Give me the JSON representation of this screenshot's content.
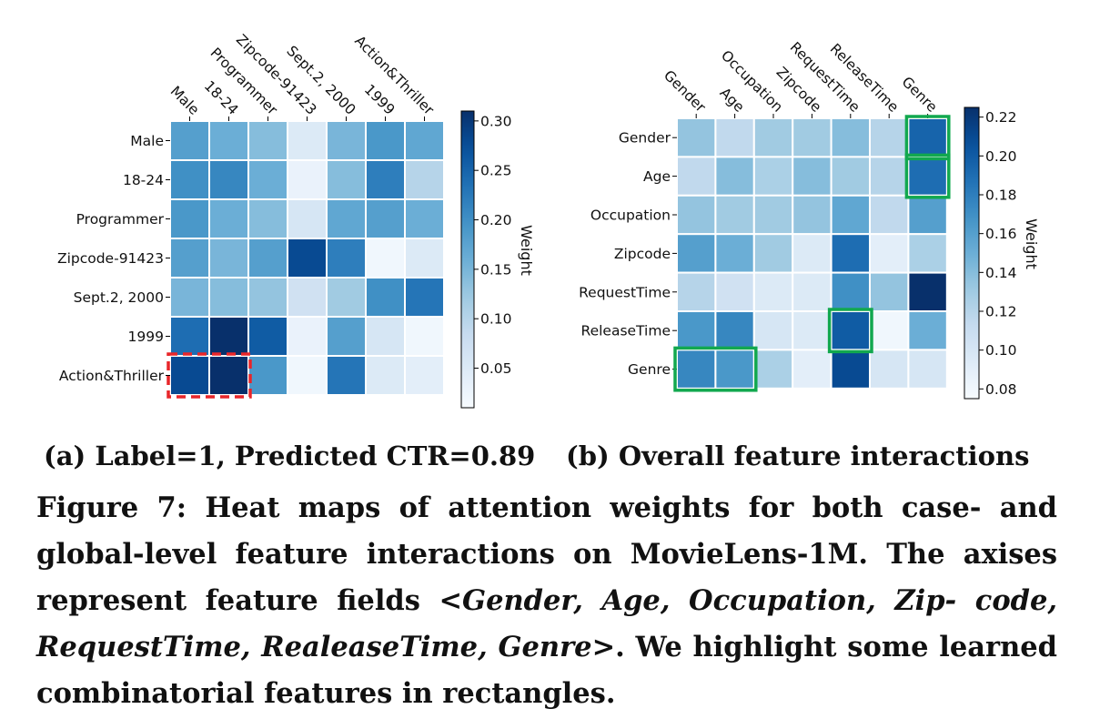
{
  "chart_data": [
    {
      "type": "heatmap",
      "x_labels": [
        "Male",
        "18-24",
        "Programmer",
        "Zipcode-91423",
        "Sept.2, 2000",
        "1999",
        "Action&Thriller"
      ],
      "y_labels": [
        "Male",
        "18-24",
        "Programmer",
        "Zipcode-91423",
        "Sept.2, 2000",
        "1999",
        "Action&Thriller"
      ],
      "values": [
        [
          0.18,
          0.16,
          0.14,
          0.05,
          0.15,
          0.19,
          0.17
        ],
        [
          0.2,
          0.21,
          0.16,
          0.03,
          0.14,
          0.22,
          0.1
        ],
        [
          0.19,
          0.16,
          0.14,
          0.06,
          0.17,
          0.18,
          0.16
        ],
        [
          0.18,
          0.15,
          0.18,
          0.28,
          0.22,
          0.02,
          0.05
        ],
        [
          0.15,
          0.14,
          0.13,
          0.07,
          0.12,
          0.2,
          0.23
        ],
        [
          0.24,
          0.31,
          0.26,
          0.03,
          0.18,
          0.06,
          0.02
        ],
        [
          0.28,
          0.31,
          0.19,
          0.02,
          0.23,
          0.05,
          0.04
        ]
      ],
      "colorbar": {
        "label": "Weight",
        "min": 0.01,
        "max": 0.31,
        "ticks": [
          "0.05",
          "0.10",
          "0.15",
          "0.20",
          "0.25",
          "0.30"
        ]
      },
      "highlights": [
        {
          "rows": [
            6,
            6
          ],
          "cols": [
            0,
            1
          ],
          "style": "dashed",
          "color": "#e8262a"
        }
      ]
    },
    {
      "type": "heatmap",
      "x_labels": [
        "Gender",
        "Age",
        "Occupation",
        "Zipcode",
        "RequestTime",
        "ReleaseTime",
        "Genre"
      ],
      "y_labels": [
        "Gender",
        "Age",
        "Occupation",
        "Zipcode",
        "RequestTime",
        "ReleaseTime",
        "Genre"
      ],
      "values": [
        [
          0.135,
          0.115,
          0.13,
          0.13,
          0.14,
          0.12,
          0.195
        ],
        [
          0.115,
          0.14,
          0.125,
          0.14,
          0.13,
          0.12,
          0.19
        ],
        [
          0.135,
          0.13,
          0.13,
          0.135,
          0.155,
          0.115,
          0.16
        ],
        [
          0.16,
          0.15,
          0.13,
          0.095,
          0.19,
          0.09,
          0.125
        ],
        [
          0.12,
          0.105,
          0.095,
          0.095,
          0.17,
          0.135,
          0.225
        ],
        [
          0.165,
          0.175,
          0.1,
          0.095,
          0.2,
          0.08,
          0.15
        ],
        [
          0.175,
          0.165,
          0.125,
          0.09,
          0.21,
          0.1,
          0.1
        ]
      ],
      "colorbar": {
        "label": "Weight",
        "min": 0.075,
        "max": 0.225,
        "ticks": [
          "0.08",
          "0.10",
          "0.12",
          "0.14",
          "0.16",
          "0.18",
          "0.20",
          "0.22"
        ]
      },
      "highlights": [
        {
          "rows": [
            0,
            0
          ],
          "cols": [
            6,
            6
          ],
          "style": "solid",
          "color": "#12a84f"
        },
        {
          "rows": [
            1,
            1
          ],
          "cols": [
            6,
            6
          ],
          "style": "solid",
          "color": "#12a84f"
        },
        {
          "rows": [
            5,
            5
          ],
          "cols": [
            4,
            4
          ],
          "style": "solid",
          "color": "#12a84f"
        },
        {
          "rows": [
            6,
            6
          ],
          "cols": [
            0,
            1
          ],
          "style": "solid",
          "color": "#12a84f"
        }
      ]
    }
  ],
  "subcaption_a": "(a) Label=1, Predicted CTR=0.89",
  "subcaption_b": "(b) Overall feature interactions",
  "caption": {
    "part1": "Figure 7: Heat maps of attention weights for both case- and global-level feature interactions on MovieLens-1M. The axises represent feature fields <",
    "italic": "Gender, Age, Occupation, Zip- code, RequestTime, RealeaseTime, Genre",
    "part2": ">. We highlight some learned combinatorial features in rectangles."
  }
}
